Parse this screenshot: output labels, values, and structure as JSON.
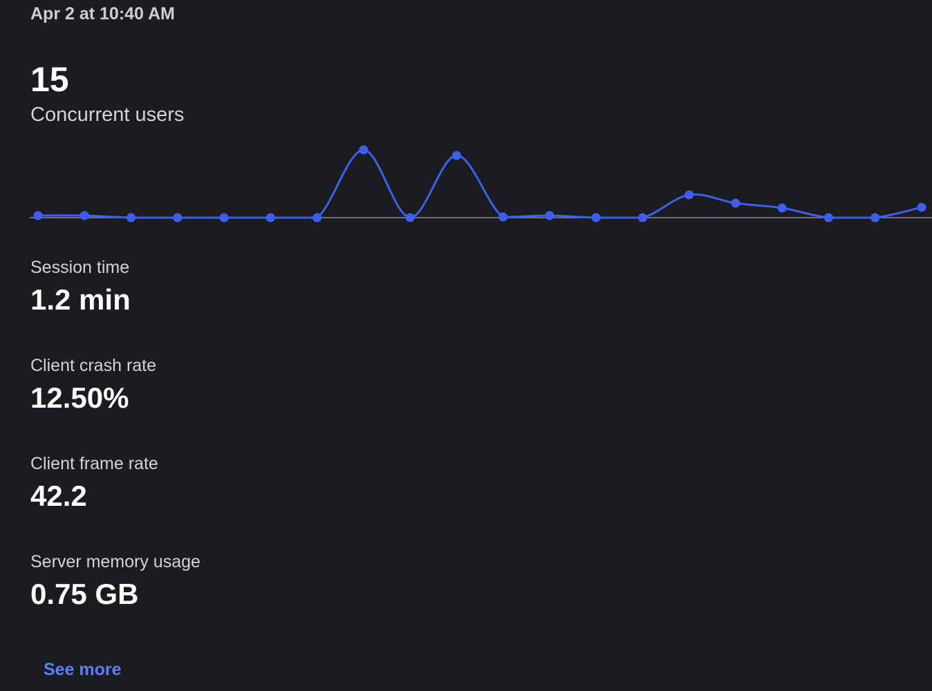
{
  "header": {
    "timestamp": "Apr 2 at 10:40 AM"
  },
  "headline": {
    "value": "15",
    "label": "Concurrent users"
  },
  "chart_data": {
    "type": "line",
    "color": "#3d5ef0",
    "values": [
      3,
      3,
      0,
      0,
      0,
      0,
      0,
      98,
      0,
      90,
      1,
      3,
      0,
      0,
      33,
      21,
      14,
      0,
      0,
      15
    ]
  },
  "metrics": [
    {
      "label": "Session time",
      "value": "1.2 min"
    },
    {
      "label": "Client crash rate",
      "value": "12.50%"
    },
    {
      "label": "Client frame rate",
      "value": "42.2"
    },
    {
      "label": "Server memory usage",
      "value": "0.75 GB"
    }
  ],
  "link": "See more"
}
